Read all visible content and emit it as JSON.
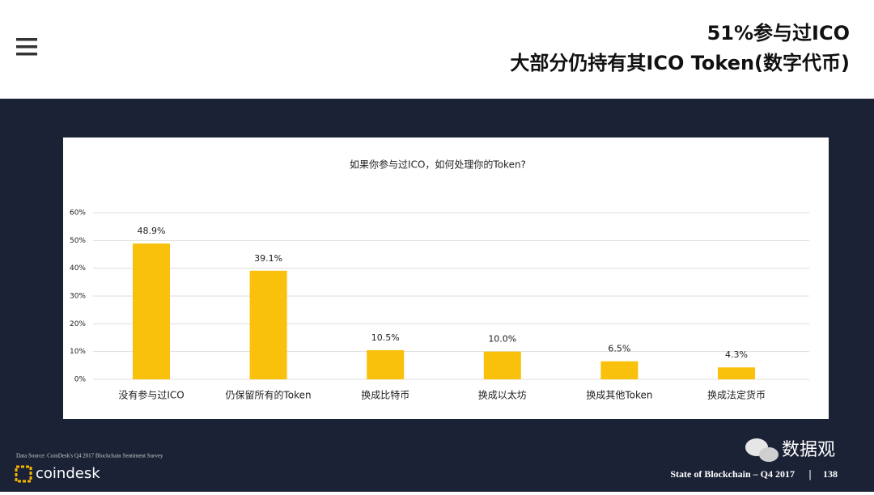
{
  "header": {
    "title_line1": "51%参与过ICO",
    "title_line2": "大部分仍持有其ICO Token(数字代币)"
  },
  "chart_data": {
    "type": "bar",
    "title": "如果你参与过ICO，如何处理你的Token?",
    "categories": [
      "没有参与过ICO",
      "仍保留所有的Token",
      "换成比特币",
      "换成以太坊",
      "换成其他Token",
      "换成法定货币"
    ],
    "values": [
      48.9,
      39.1,
      10.5,
      10.0,
      6.5,
      4.3
    ],
    "value_labels": [
      "48.9%",
      "39.1%",
      "10.5%",
      "10.0%",
      "6.5%",
      "4.3%"
    ],
    "color": "#f9c10c",
    "ylim": [
      0,
      60
    ],
    "yticks": [
      {
        "value": 0,
        "label": "0%"
      },
      {
        "value": 10,
        "label": "10%"
      },
      {
        "value": 20,
        "label": "20%"
      },
      {
        "value": 30,
        "label": "30%"
      },
      {
        "value": 40,
        "label": "40%"
      },
      {
        "value": 50,
        "label": "50%"
      },
      {
        "value": 60,
        "label": "60%"
      }
    ],
    "grid": true
  },
  "footer": {
    "source": "Data Source: CoinDesk's Q4 2017 Blockchain Sentiment Survey",
    "brand": "coindesk",
    "report": "State of Blockchain – Q4 2017",
    "separator": "|",
    "page": "138",
    "wechat": "数据观"
  }
}
